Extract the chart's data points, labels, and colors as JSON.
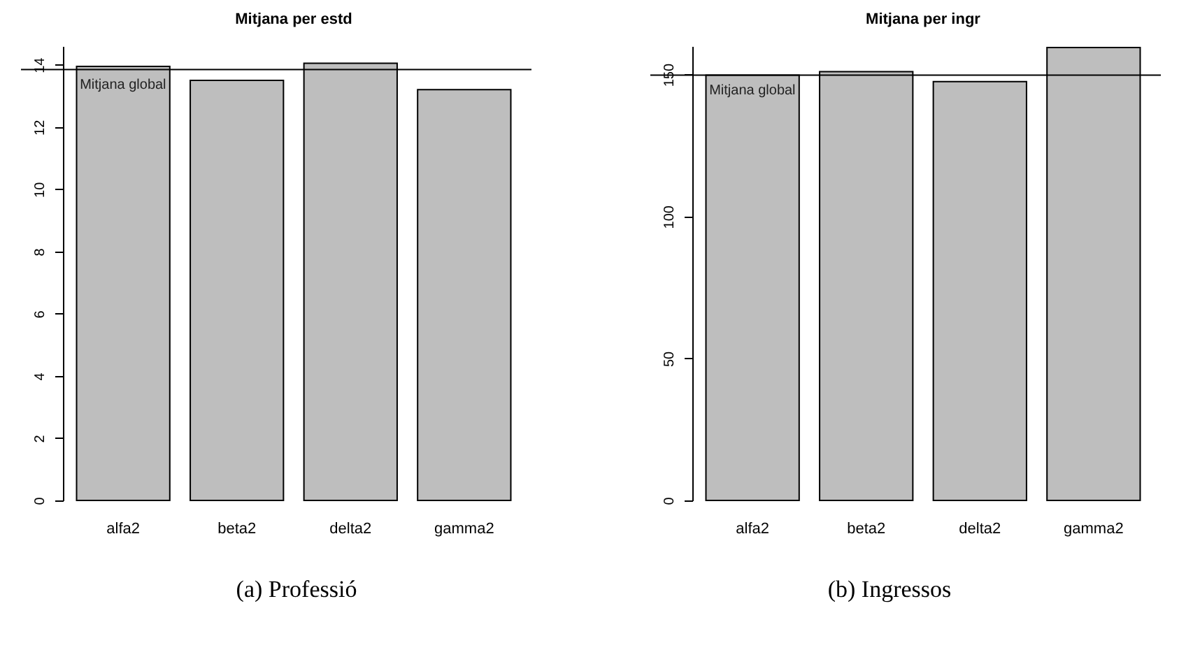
{
  "chart_data": [
    {
      "type": "bar",
      "title": "Mitjana per estd",
      "categories": [
        "alfa2",
        "beta2",
        "delta2",
        "gamma2"
      ],
      "values": [
        13.95,
        13.5,
        14.05,
        13.2
      ],
      "color": "#bebebe",
      "ylim": [
        0,
        14.6
      ],
      "yticks": [
        0,
        2,
        4,
        6,
        8,
        10,
        12,
        14
      ],
      "ref_lines": [
        {
          "axis": "y",
          "value": 13.85,
          "label": "Mitjana global",
          "color": "#000000"
        }
      ],
      "annotations": [
        "(a) Professió"
      ]
    },
    {
      "type": "bar",
      "title": "Mitjana per ingr",
      "categories": [
        "alfa2",
        "beta2",
        "delta2",
        "gamma2"
      ],
      "values": [
        149.8,
        151,
        147.5,
        159.5
      ],
      "color": "#bebebe",
      "ylim": [
        0,
        160
      ],
      "yticks": [
        0,
        50,
        100,
        150
      ],
      "ref_lines": [
        {
          "axis": "y",
          "value": 149.8,
          "label": "Mitjana global",
          "color": "#000000"
        }
      ],
      "annotations": [
        "(b) Ingressos"
      ]
    }
  ]
}
